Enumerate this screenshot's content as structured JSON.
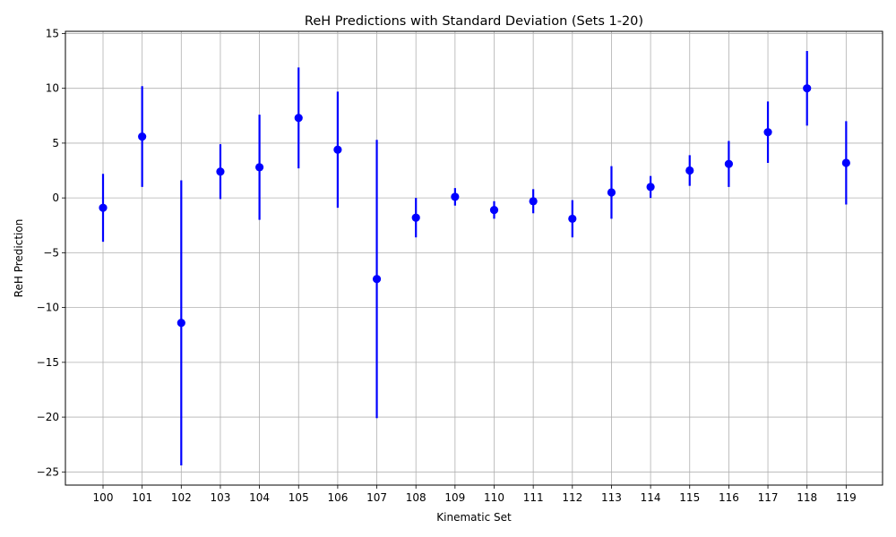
{
  "chart_data": {
    "type": "scatter",
    "title": "ReH Predictions with Standard Deviation (Sets 1-20)",
    "xlabel": "Kinematic Set",
    "ylabel": "ReH Prediction",
    "categories": [
      "100",
      "101",
      "102",
      "103",
      "104",
      "105",
      "106",
      "107",
      "108",
      "109",
      "110",
      "111",
      "112",
      "113",
      "114",
      "115",
      "116",
      "117",
      "118",
      "119"
    ],
    "series": [
      {
        "values": [
          -0.9,
          5.6,
          -11.4,
          2.4,
          2.8,
          7.3,
          4.4,
          -7.4,
          -1.8,
          0.1,
          -1.1,
          -0.3,
          -1.9,
          0.5,
          1.0,
          2.5,
          3.1,
          6.0,
          10.0,
          3.2
        ],
        "std": [
          3.1,
          4.6,
          13.0,
          2.5,
          4.8,
          4.6,
          5.3,
          12.7,
          1.8,
          0.8,
          0.8,
          1.1,
          1.7,
          2.4,
          1.0,
          1.4,
          2.1,
          2.8,
          3.4,
          3.8
        ],
        "color": "#0000ff"
      }
    ],
    "ylim": [
      -26.2,
      15.2
    ],
    "yticks": [
      15,
      10,
      5,
      0,
      -5,
      -10,
      -15,
      -20,
      -25
    ],
    "ytick_labels": [
      "15",
      "10",
      "5",
      "0",
      "−5",
      "−10",
      "−15",
      "−20",
      "−25"
    ],
    "grid": true,
    "grid_color": "#b0b0b0"
  }
}
